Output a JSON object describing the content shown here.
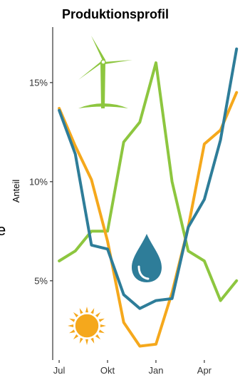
{
  "chart_data": {
    "type": "line",
    "title": "Produktionsprofil",
    "xlabel": "",
    "ylabel": "Anteil",
    "stray_label": "e",
    "x": [
      1,
      2,
      3,
      4,
      5,
      6,
      7,
      8,
      9,
      10,
      11,
      12
    ],
    "x_ticks": [
      {
        "label": "Jul",
        "x": 1
      },
      {
        "label": "Okt",
        "x": 4
      },
      {
        "label": "Jan",
        "x": 7
      },
      {
        "label": "Apr",
        "x": 10
      }
    ],
    "xlim": [
      0.6,
      12.3
    ],
    "y_ticks": [
      {
        "label": "5%",
        "y": 5
      },
      {
        "label": "10%",
        "y": 10
      },
      {
        "label": "15%",
        "y": 15
      }
    ],
    "ylim": [
      1.0,
      17.8
    ],
    "grid": false,
    "series": [
      {
        "key": "wind",
        "values": [
          6.0,
          6.5,
          7.5,
          7.5,
          12.0,
          13.0,
          16.0,
          10.0,
          6.5,
          6.0,
          4.0,
          5.0
        ],
        "color": "#8dc63f",
        "icon": "wind-turbine-icon"
      },
      {
        "key": "solar",
        "values": [
          13.7,
          11.8,
          10.1,
          7.0,
          2.9,
          1.7,
          1.8,
          4.4,
          7.7,
          11.9,
          12.6,
          14.5
        ],
        "color": "#f5a81c",
        "icon": "sun-icon"
      },
      {
        "key": "hydro",
        "values": [
          13.6,
          11.4,
          6.8,
          6.6,
          4.3,
          3.6,
          4.0,
          4.1,
          7.7,
          9.1,
          12.1,
          16.7
        ],
        "color": "#2e7d99",
        "icon": "water-drop-icon"
      }
    ]
  }
}
